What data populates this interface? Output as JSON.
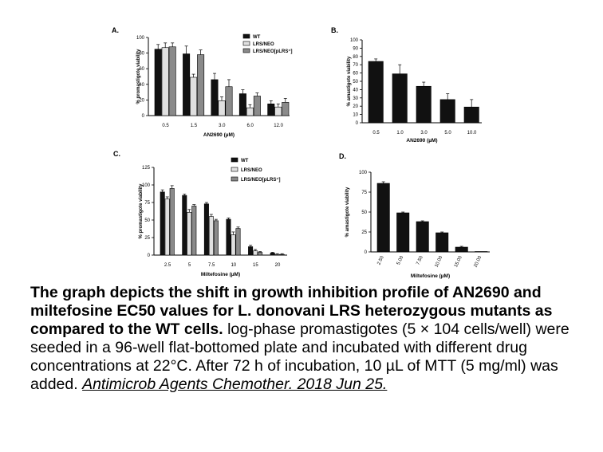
{
  "chart_data": [
    {
      "panel": "A.",
      "type": "bar",
      "categories": [
        "0.5",
        "1.5",
        "3.0",
        "6.0",
        "12.0"
      ],
      "series": [
        {
          "name": "WT",
          "values": [
            85,
            79,
            46,
            28,
            15
          ],
          "errors": [
            6,
            10,
            8,
            5,
            4
          ]
        },
        {
          "name": "LRS/NEO",
          "values": [
            87,
            49,
            19,
            10,
            11
          ],
          "errors": [
            6,
            4,
            5,
            4,
            4
          ]
        },
        {
          "name": "LRS/NEO[pLRS⁺]",
          "values": [
            88,
            78,
            37,
            25,
            17
          ],
          "errors": [
            5,
            6,
            9,
            4,
            5
          ]
        }
      ],
      "xlabel": "AN2690 (µM)",
      "ylabel": "% promastigote viability",
      "ylim": [
        0,
        100
      ],
      "yticks": [
        "0",
        "20",
        "40",
        "60",
        "80",
        "100"
      ]
    },
    {
      "panel": "B.",
      "type": "bar",
      "categories": [
        "0.5",
        "1.0",
        "3.0",
        "5.0",
        "10.0"
      ],
      "series": [
        {
          "values": [
            74,
            59,
            44,
            28,
            19
          ],
          "errors": [
            3,
            11,
            5,
            7,
            9
          ]
        }
      ],
      "xlabel": "AN2690 (µM)",
      "ylabel": "% amastigote viability",
      "ylim": [
        0,
        100
      ],
      "yticks": [
        "0",
        "10",
        "20",
        "30",
        "40",
        "50",
        "60",
        "70",
        "80",
        "90",
        "100"
      ]
    },
    {
      "panel": "C.",
      "type": "bar",
      "categories": [
        "2.5",
        "5",
        "7.5",
        "10",
        "15",
        "20"
      ],
      "series": [
        {
          "name": "WT",
          "values": [
            90,
            85,
            73,
            51,
            12,
            3
          ],
          "errors": [
            3,
            2,
            2,
            2,
            2,
            1
          ]
        },
        {
          "name": "LRS/NEO",
          "values": [
            80,
            61,
            55,
            29,
            6,
            1
          ],
          "errors": [
            3,
            4,
            3,
            4,
            2,
            1
          ]
        },
        {
          "name": "LRS/NEO[pLRS⁺]",
          "values": [
            95,
            70,
            49,
            38,
            4,
            1
          ],
          "errors": [
            4,
            2,
            2,
            2,
            1,
            1
          ]
        }
      ],
      "xlabel": "Miltefosine (µM)",
      "ylabel": "% promastigote viability",
      "ylim": [
        0,
        125
      ],
      "yticks": [
        "0",
        "25",
        "50",
        "75",
        "100",
        "125"
      ]
    },
    {
      "panel": "D.",
      "type": "bar",
      "categories": [
        "2.50",
        "5.00",
        "7.50",
        "10.00",
        "15.00",
        "20.00"
      ],
      "series": [
        {
          "values": [
            86,
            49,
            38,
            24,
            6,
            0.5
          ],
          "errors": [
            2,
            1,
            1,
            1,
            1,
            0
          ]
        }
      ],
      "xlabel": "Miltefosine (µM)",
      "ylabel": "% amastigote viability",
      "ylim": [
        0,
        100
      ],
      "yticks": [
        "0",
        "25",
        "50",
        "75",
        "100"
      ]
    }
  ],
  "caption": {
    "heading": "The graph depicts the shift in growth inhibition profile of AN2690 and miltefosine EC50 values for L. donovani LRS heterozygous mutants as compared to the WT cells.",
    "body": "log-phase promastigotes (5 × 104 cells/well) were seeded in a 96-well flat-bottomed plate and incubated with different drug concentrations at 22°C. After 72 h of incubation, 10 µL of MTT (5 mg/ml) was added.",
    "citation": "Antimicrob Agents Chemother. 2018 Jun 25."
  },
  "colors": {
    "WT": "#111111",
    "LRS/NEO": "#e0e0e0",
    "LRS/NEO[pLRS⁺]": "#8a8a8a",
    "single": "#111111"
  }
}
